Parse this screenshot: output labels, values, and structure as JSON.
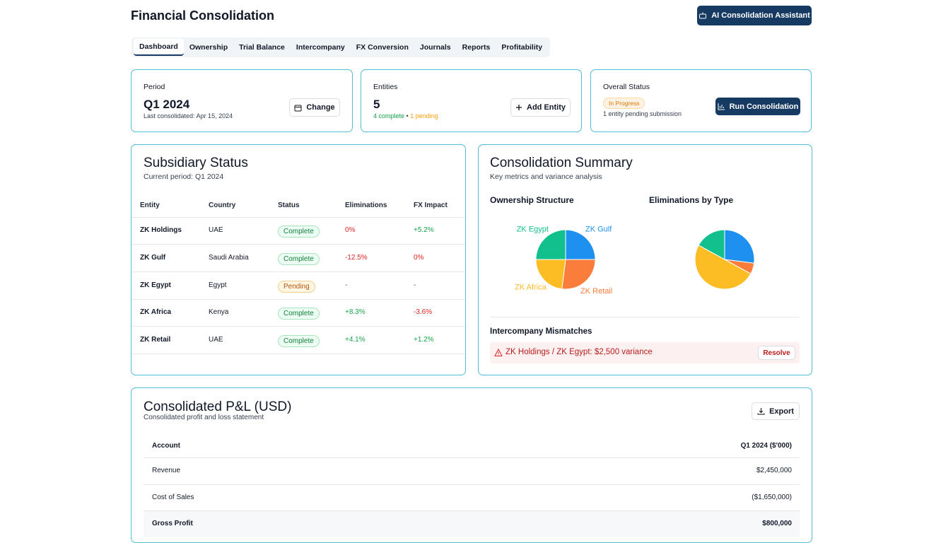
{
  "header": {
    "title": "Financial Consolidation",
    "assistant_button": "AI Consolidation Assistant"
  },
  "tabs": [
    "Dashboard",
    "Ownership",
    "Trial Balance",
    "Intercompany",
    "FX Conversion",
    "Journals",
    "Reports",
    "Profitability"
  ],
  "period_card": {
    "label": "Period",
    "value": "Q1 2024",
    "note": "Last consolidated: Apr 15, 2024",
    "button": "Change"
  },
  "entities_card": {
    "label": "Entities",
    "value": 5,
    "complete": "4 complete",
    "separator": "•",
    "pending": "1 pending",
    "button": "Add Entity"
  },
  "status_card": {
    "label": "Overall Status",
    "badge": "In Progress",
    "note": "1 entity pending submission",
    "button": "Run Consolidation"
  },
  "subsidiary": {
    "title": "Subsidiary Status",
    "subtitle": "Current period: Q1 2024",
    "columns": [
      "Entity",
      "Country",
      "Status",
      "Eliminations",
      "FX Impact"
    ],
    "rows": [
      [
        "ZK Holdings",
        "UAE",
        "Complete",
        "0%",
        "+5.2%"
      ],
      [
        "ZK Gulf",
        "Saudi Arabia",
        "Complete",
        "-12.5%",
        "0%"
      ],
      [
        "ZK Egypt",
        "Egypt",
        "Pending",
        "-",
        "-"
      ],
      [
        "ZK Africa",
        "Kenya",
        "Complete",
        "+8.3%",
        "-3.6%"
      ],
      [
        "ZK Retail",
        "UAE",
        "Complete",
        "+4.1%",
        "+1.2%"
      ]
    ]
  },
  "summary": {
    "title": "Consolidation Summary",
    "subtitle": "Key metrics and variance analysis",
    "mismatches_title": "Intercompany Mismatches",
    "mismatch": "ZK Holdings / ZK Egypt: $2,500 variance",
    "resolve": "Resolve"
  },
  "pnl": {
    "title": "Consolidated P&L (USD)",
    "subtitle": "Consolidated profit and loss statement",
    "export": "Export",
    "columns": [
      "Account",
      "Q1 2024 ($'000)"
    ],
    "rows": [
      [
        "Revenue",
        "$2,450,000"
      ],
      [
        "Cost of Sales",
        "($1,650,000)"
      ],
      [
        "Gross Profit",
        "$800,000"
      ]
    ]
  },
  "chart_data": [
    {
      "type": "pie",
      "title": "Ownership Structure",
      "categories": [
        "ZK Gulf",
        "ZK Retail",
        "ZK Africa",
        "ZK Egypt"
      ],
      "values": [
        25,
        27,
        23,
        25
      ],
      "colors": [
        "#1e90f0",
        "#fb7d3c",
        "#fbbc24",
        "#12c08e"
      ]
    },
    {
      "type": "pie",
      "title": "Eliminations by Type",
      "categories": [
        null,
        null,
        null,
        null
      ],
      "values": [
        27,
        6,
        50,
        17
      ],
      "colors": [
        "#1e90f0",
        "#fb7d3c",
        "#fbbc24",
        "#12c08e"
      ]
    }
  ]
}
